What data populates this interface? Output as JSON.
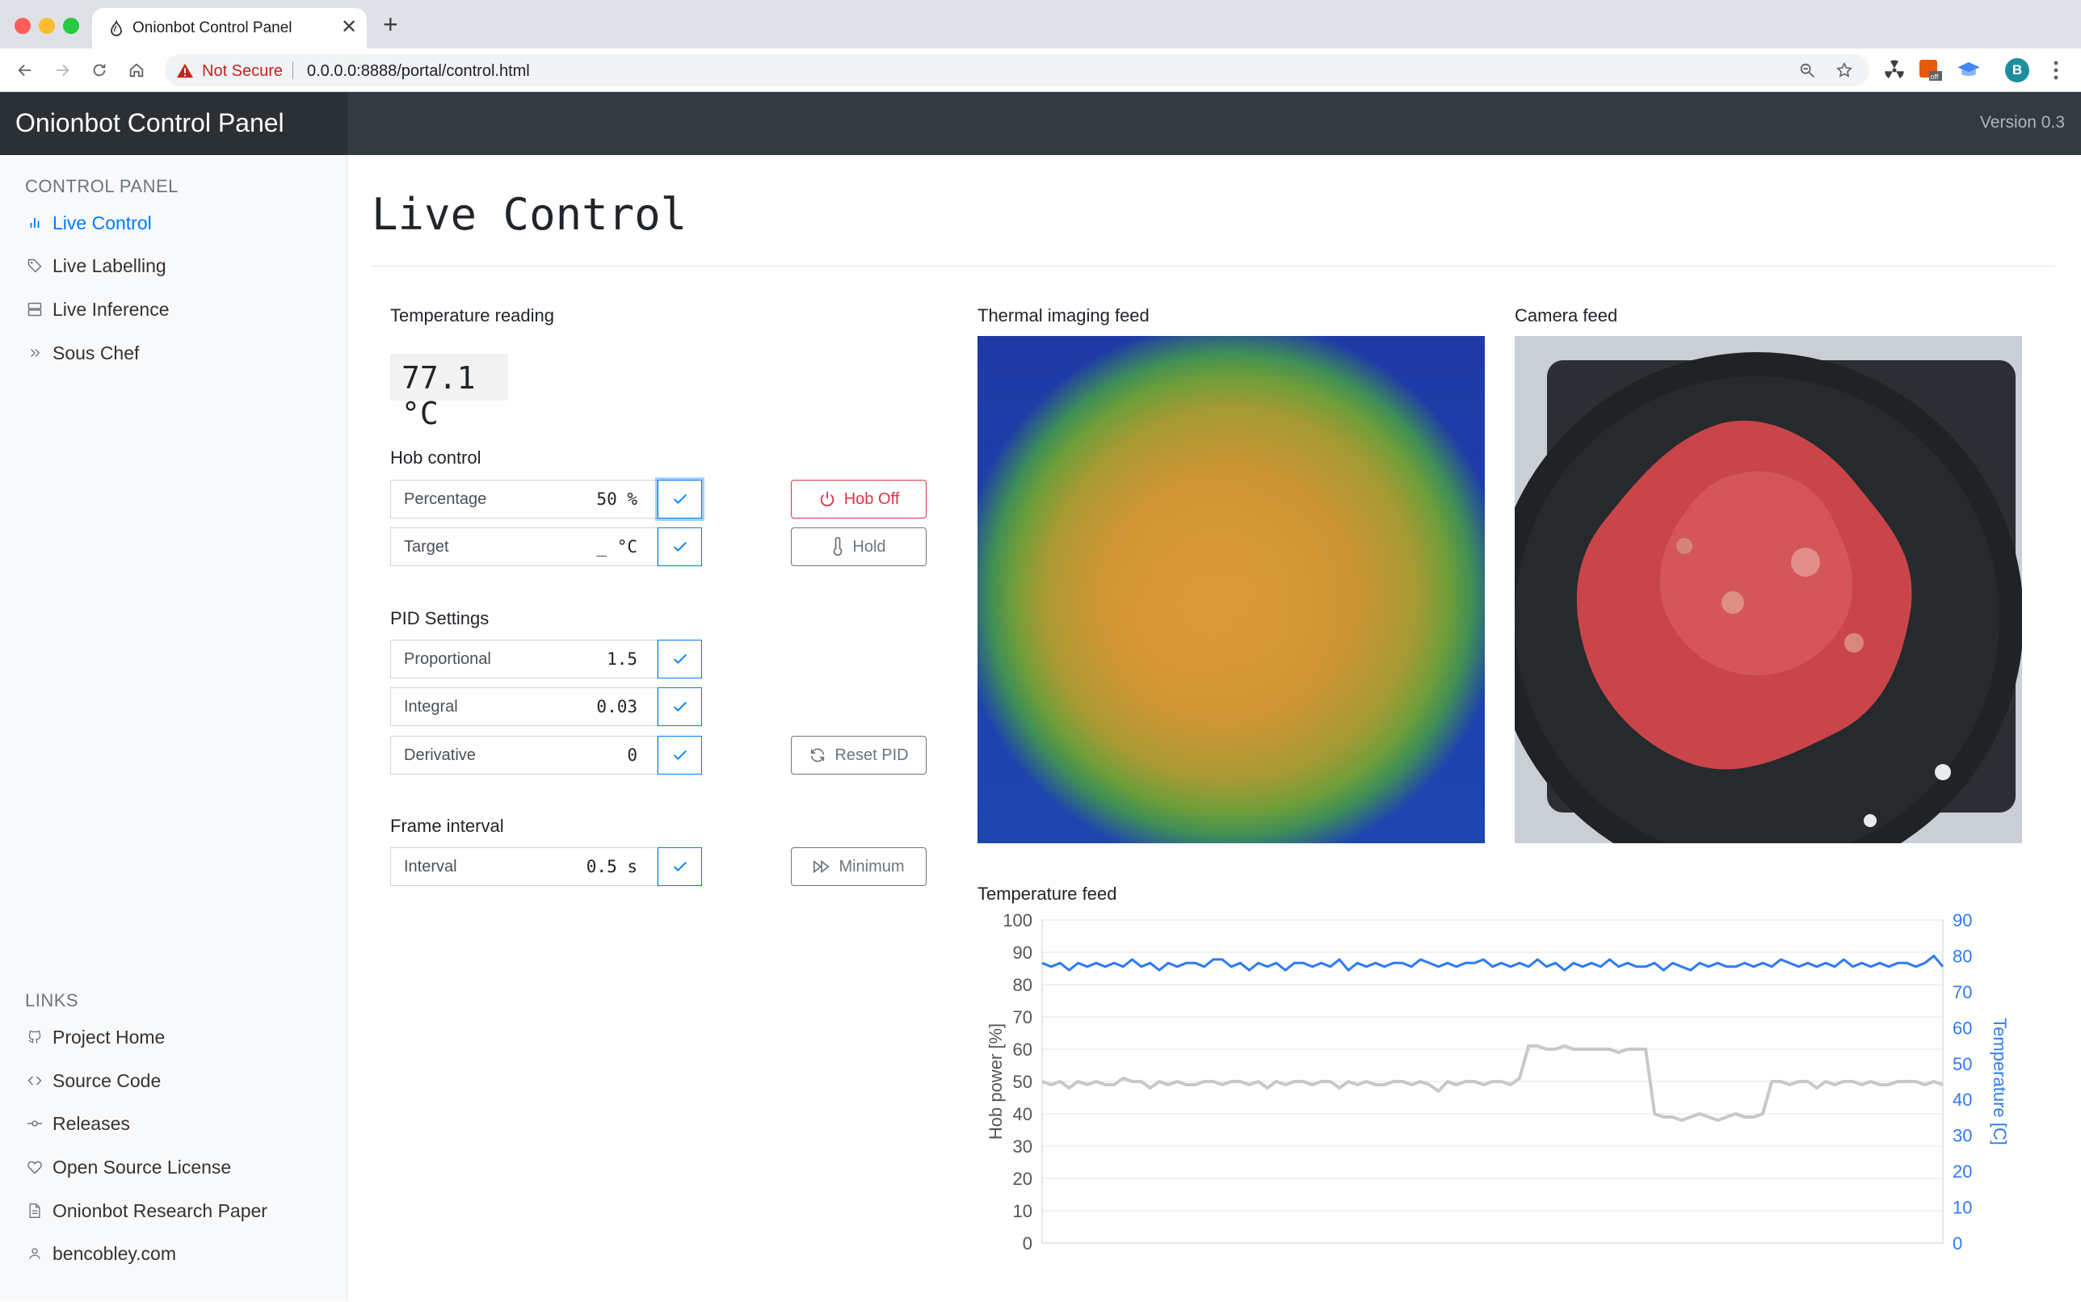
{
  "browser": {
    "tab_title": "Onionbot Control Panel",
    "security_label": "Not Secure",
    "url": "0.0.0.0:8888/portal/control.html",
    "profile_initial": "B"
  },
  "app": {
    "brand": "Onionbot Control Panel",
    "version": "Version 0.3"
  },
  "sidebar": {
    "heading": "CONTROL PANEL",
    "items": [
      {
        "label": "Live Control",
        "icon": "bar-chart-icon",
        "active": true
      },
      {
        "label": "Live Labelling",
        "icon": "tag-icon"
      },
      {
        "label": "Live Inference",
        "icon": "server-icon"
      },
      {
        "label": "Sous Chef",
        "icon": "chevrons-right-icon"
      }
    ],
    "links_heading": "LINKS",
    "links": [
      {
        "label": "Project Home",
        "icon": "github-icon"
      },
      {
        "label": "Source Code",
        "icon": "code-icon"
      },
      {
        "label": "Releases",
        "icon": "git-commit-icon"
      },
      {
        "label": "Open Source License",
        "icon": "heart-icon"
      },
      {
        "label": "Onionbot Research Paper",
        "icon": "file-icon"
      },
      {
        "label": "bencobley.com",
        "icon": "user-icon"
      }
    ]
  },
  "main": {
    "title": "Live Control",
    "temperature_label": "Temperature reading",
    "temperature_value": "77.1 °C",
    "hob_control": {
      "heading": "Hob control",
      "percentage_label": "Percentage",
      "percentage_value": "50 %",
      "target_label": "Target",
      "target_value": "_ °C",
      "hob_off_label": "Hob Off",
      "hold_label": "Hold"
    },
    "pid": {
      "heading": "PID Settings",
      "proportional_label": "Proportional",
      "proportional_value": "1.5",
      "integral_label": "Integral",
      "integral_value": "0.03",
      "derivative_label": "Derivative",
      "derivative_value": "0",
      "reset_label": "Reset PID"
    },
    "frame": {
      "heading": "Frame interval",
      "interval_label": "Interval",
      "interval_value": "0.5 s",
      "minimum_label": "Minimum"
    },
    "thermal_label": "Thermal imaging feed",
    "camera_label": "Camera feed",
    "temperature_feed_label": "Temperature feed"
  },
  "colors": {
    "accent": "#007bff",
    "danger": "#dc3545",
    "hob_series": "#c8c8c8",
    "temp_series": "#2f7bf5"
  },
  "chart_data": {
    "type": "line",
    "x": [
      0,
      1,
      2,
      3,
      4,
      5,
      6,
      7,
      8,
      9,
      10,
      11,
      12,
      13,
      14,
      15,
      16,
      17,
      18,
      19,
      20,
      21,
      22,
      23,
      24,
      25,
      26,
      27,
      28,
      29,
      30,
      31,
      32,
      33,
      34,
      35,
      36,
      37,
      38,
      39,
      40,
      41,
      42,
      43,
      44,
      45,
      46,
      47,
      48,
      49,
      50,
      51,
      52,
      53,
      54,
      55,
      56,
      57,
      58,
      59,
      60,
      61,
      62,
      63,
      64,
      65,
      66,
      67,
      68,
      69,
      70,
      71,
      72,
      73,
      74,
      75,
      76,
      77,
      78,
      79,
      80,
      81,
      82,
      83,
      84,
      85,
      86,
      87,
      88,
      89,
      90,
      91,
      92,
      93,
      94,
      95,
      96,
      97,
      98,
      99,
      100
    ],
    "y_left_label": "Hob power [%]",
    "y_left_range": [
      0,
      100
    ],
    "y_left_ticks": [
      0,
      10,
      20,
      30,
      40,
      50,
      60,
      70,
      80,
      90,
      100
    ],
    "y_right_label": "Temperature [C]",
    "y_right_range": [
      0,
      90
    ],
    "y_right_ticks": [
      0,
      10,
      20,
      30,
      40,
      50,
      60,
      70,
      80,
      90
    ],
    "grid": true,
    "series": [
      {
        "axis": "left",
        "values": [
          50,
          49,
          50,
          48,
          50,
          49,
          50,
          49,
          49,
          51,
          50,
          50,
          48,
          50,
          49,
          50,
          49,
          49,
          50,
          50,
          49,
          50,
          50,
          49,
          50,
          48,
          50,
          49,
          50,
          50,
          49,
          50,
          50,
          48,
          50,
          49,
          50,
          49,
          49,
          50,
          50,
          49,
          50,
          49,
          47,
          50,
          49,
          50,
          50,
          49,
          50,
          50,
          49,
          51,
          61,
          61,
          60,
          60,
          61,
          60,
          60,
          60,
          60,
          60,
          59,
          60,
          60,
          60,
          40,
          39,
          39,
          38,
          39,
          40,
          39,
          38,
          39,
          40,
          39,
          39,
          40,
          50,
          50,
          49,
          50,
          50,
          48,
          50,
          49,
          50,
          50,
          49,
          50,
          49,
          49,
          50,
          50,
          50,
          49,
          50,
          49
        ]
      },
      {
        "axis": "right",
        "values": [
          78,
          77,
          78,
          76,
          78,
          77,
          78,
          77,
          78,
          77,
          79,
          77,
          78,
          76,
          78,
          77,
          78,
          78,
          77,
          79,
          79,
          77,
          78,
          76,
          78,
          77,
          78,
          76,
          78,
          78,
          77,
          78,
          77,
          79,
          76,
          78,
          77,
          78,
          77,
          78,
          78,
          77,
          79,
          78,
          77,
          78,
          77,
          78,
          78,
          79,
          77,
          78,
          77,
          78,
          77,
          79,
          77,
          78,
          76,
          78,
          77,
          78,
          77,
          79,
          77,
          78,
          77,
          77,
          78,
          76,
          78,
          77,
          76,
          78,
          77,
          78,
          77,
          77,
          78,
          77,
          78,
          77,
          79,
          78,
          77,
          78,
          77,
          78,
          77,
          79,
          77,
          78,
          77,
          78,
          77,
          78,
          78,
          77,
          78,
          80,
          77
        ]
      }
    ]
  }
}
